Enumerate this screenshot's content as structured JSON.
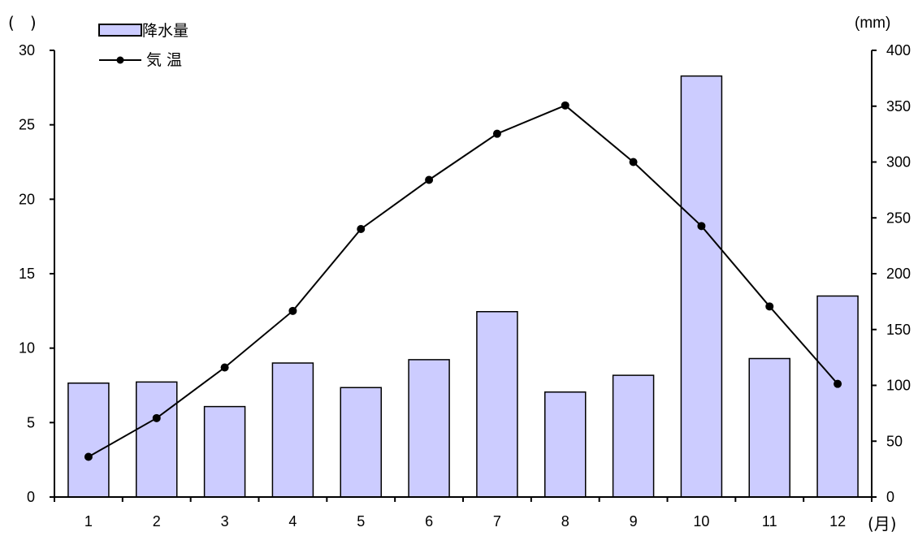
{
  "chart_data": {
    "type": "bar+line",
    "categories": [
      "1",
      "2",
      "3",
      "4",
      "5",
      "6",
      "7",
      "8",
      "9",
      "10",
      "11",
      "12"
    ],
    "x_unit_label": "(月)",
    "left_axis": {
      "unit_label": "(   )",
      "min": 0,
      "max": 30,
      "step": 5,
      "ticks": [
        "0",
        "5",
        "10",
        "15",
        "20",
        "25",
        "30"
      ]
    },
    "right_axis": {
      "unit_label": "(mm)",
      "min": 0,
      "max": 400,
      "step": 50,
      "ticks": [
        "0",
        "50",
        "100",
        "150",
        "200",
        "250",
        "300",
        "350",
        "400"
      ]
    },
    "series": [
      {
        "name": "降水量",
        "type": "bar",
        "axis": "right",
        "values": [
          102,
          103,
          81,
          120,
          98,
          123,
          166,
          94,
          109,
          377,
          124,
          180
        ]
      },
      {
        "name": "気 温",
        "type": "line",
        "axis": "left",
        "values": [
          2.7,
          5.3,
          8.7,
          12.5,
          18.0,
          21.3,
          24.4,
          26.3,
          22.5,
          18.2,
          12.8,
          7.6
        ]
      }
    ],
    "legend_position": "top-left",
    "grid": false
  },
  "colors": {
    "bar_fill": "#ccccff",
    "bar_stroke": "#000000",
    "line": "#000000"
  }
}
